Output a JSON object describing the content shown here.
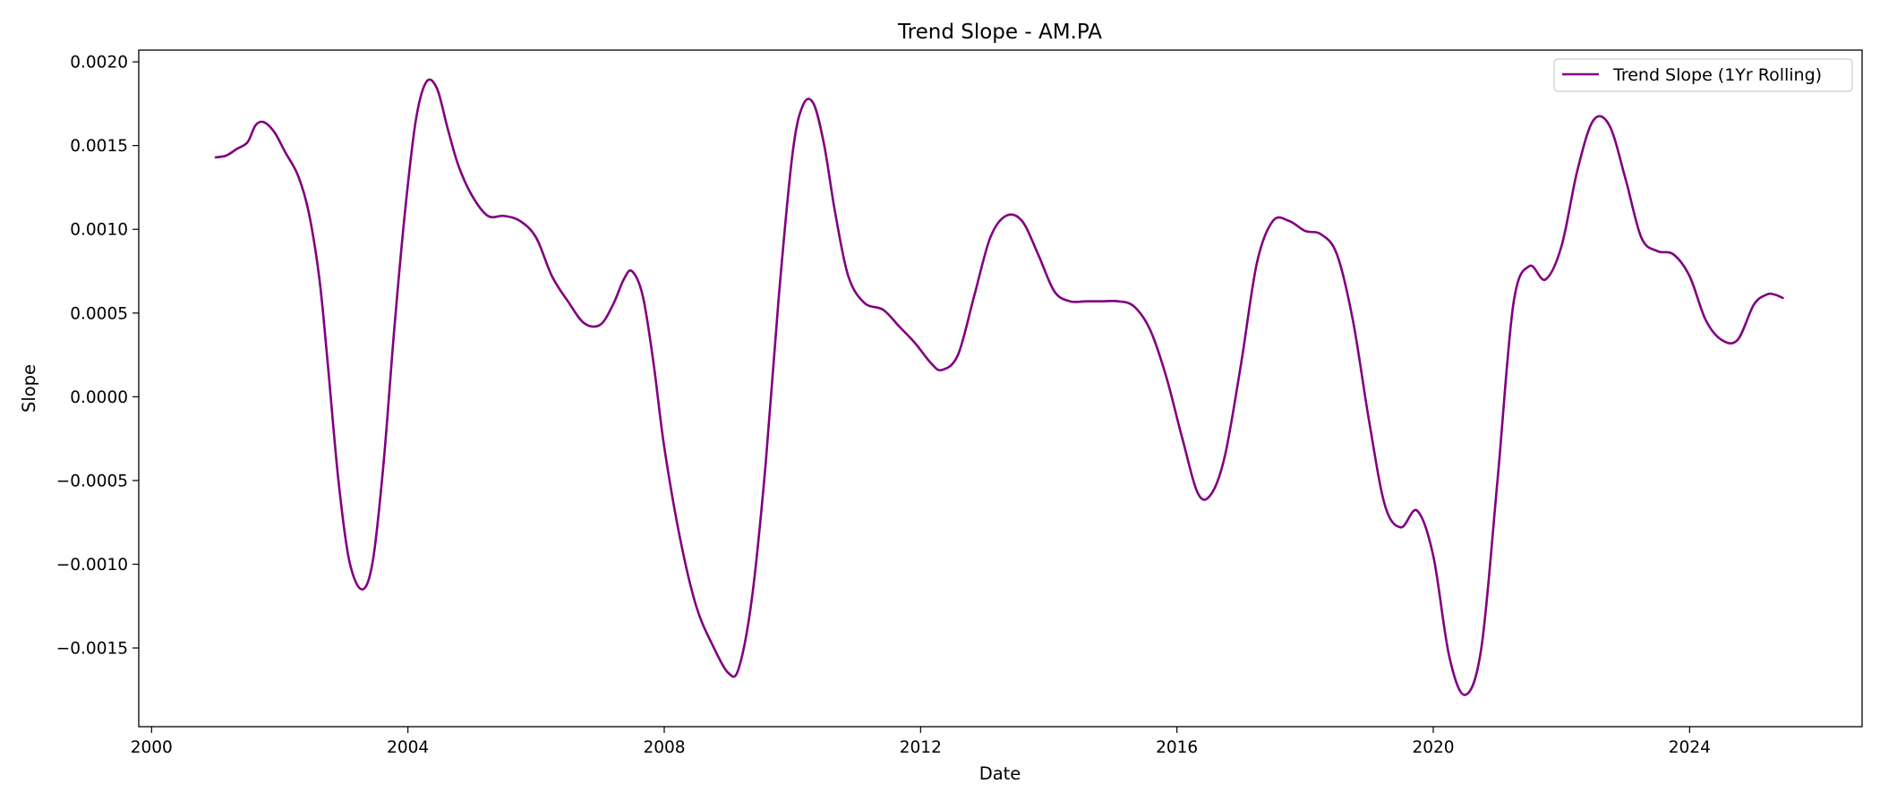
{
  "chart_data": {
    "type": "line",
    "title": "Trend Slope - AM.PA",
    "xlabel": "Date",
    "ylabel": "Slope",
    "xlim": [
      "1999-10-20",
      "2026-09-10"
    ],
    "ylim": [
      -0.00197,
      0.00207
    ],
    "x_ticks": [
      {
        "value": "2000-01-01",
        "label": "2000"
      },
      {
        "value": "2004-01-01",
        "label": "2004"
      },
      {
        "value": "2008-01-01",
        "label": "2008"
      },
      {
        "value": "2012-01-01",
        "label": "2012"
      },
      {
        "value": "2016-01-01",
        "label": "2016"
      },
      {
        "value": "2020-01-01",
        "label": "2020"
      },
      {
        "value": "2024-01-01",
        "label": "2024"
      }
    ],
    "y_ticks": [
      {
        "value": 0.002,
        "label": "0.0020"
      },
      {
        "value": 0.0015,
        "label": "0.0015"
      },
      {
        "value": 0.001,
        "label": "0.0010"
      },
      {
        "value": 0.0005,
        "label": "0.0005"
      },
      {
        "value": 0.0,
        "label": "0.0000"
      },
      {
        "value": -0.0005,
        "label": "−0.0005"
      },
      {
        "value": -0.001,
        "label": "−0.0010"
      },
      {
        "value": -0.0015,
        "label": "−0.0015"
      }
    ],
    "grid": false,
    "legend_position": "top-right",
    "series": [
      {
        "name": "Trend Slope (1Yr Rolling)",
        "color": "#800080",
        "points": [
          [
            "2001-01-01",
            0.00143
          ],
          [
            "2001-03-01",
            0.00144
          ],
          [
            "2001-05-01",
            0.00148
          ],
          [
            "2001-07-01",
            0.00152
          ],
          [
            "2001-08-15",
            0.00162
          ],
          [
            "2001-10-01",
            0.00164
          ],
          [
            "2001-12-01",
            0.00158
          ],
          [
            "2002-02-01",
            0.00146
          ],
          [
            "2002-04-15",
            0.00132
          ],
          [
            "2002-06-15",
            0.0011
          ],
          [
            "2002-08-15",
            0.0007
          ],
          [
            "2002-10-01",
            0.0002
          ],
          [
            "2002-12-01",
            -0.0005
          ],
          [
            "2003-02-01",
            -0.00098
          ],
          [
            "2003-04-15",
            -0.00115
          ],
          [
            "2003-06-15",
            -0.00098
          ],
          [
            "2003-08-15",
            -0.0004
          ],
          [
            "2003-10-15",
            0.0004
          ],
          [
            "2003-12-15",
            0.0011
          ],
          [
            "2004-02-15",
            0.00165
          ],
          [
            "2004-04-15",
            0.00188
          ],
          [
            "2004-06-15",
            0.00184
          ],
          [
            "2004-08-15",
            0.0016
          ],
          [
            "2004-10-15",
            0.00138
          ],
          [
            "2005-01-01",
            0.0012
          ],
          [
            "2005-04-01",
            0.00108
          ],
          [
            "2005-07-01",
            0.00108
          ],
          [
            "2005-10-01",
            0.00105
          ],
          [
            "2006-01-01",
            0.00095
          ],
          [
            "2006-04-01",
            0.00072
          ],
          [
            "2006-07-01",
            0.00057
          ],
          [
            "2006-10-01",
            0.00044
          ],
          [
            "2007-01-01",
            0.00043
          ],
          [
            "2007-03-15",
            0.00055
          ],
          [
            "2007-05-15",
            0.0007
          ],
          [
            "2007-07-01",
            0.00075
          ],
          [
            "2007-09-01",
            0.0006
          ],
          [
            "2007-11-01",
            0.0002
          ],
          [
            "2008-01-01",
            -0.0003
          ],
          [
            "2008-04-01",
            -0.00085
          ],
          [
            "2008-07-01",
            -0.00125
          ],
          [
            "2008-10-01",
            -0.00148
          ],
          [
            "2009-01-01",
            -0.00165
          ],
          [
            "2009-03-01",
            -0.00162
          ],
          [
            "2009-05-15",
            -0.0012
          ],
          [
            "2009-08-01",
            -0.0004
          ],
          [
            "2009-10-15",
            0.0006
          ],
          [
            "2010-01-01",
            0.00145
          ],
          [
            "2010-03-01",
            0.00174
          ],
          [
            "2010-05-01",
            0.00175
          ],
          [
            "2010-07-01",
            0.0015
          ],
          [
            "2010-09-01",
            0.0011
          ],
          [
            "2010-11-15",
            0.00072
          ],
          [
            "2011-02-15",
            0.00056
          ],
          [
            "2011-06-01",
            0.00052
          ],
          [
            "2011-09-01",
            0.00042
          ],
          [
            "2011-12-01",
            0.00032
          ],
          [
            "2012-03-01",
            0.0002
          ],
          [
            "2012-05-01",
            0.00016
          ],
          [
            "2012-08-01",
            0.00025
          ],
          [
            "2012-11-01",
            0.0006
          ],
          [
            "2013-02-01",
            0.00095
          ],
          [
            "2013-05-01",
            0.00108
          ],
          [
            "2013-08-01",
            0.00105
          ],
          [
            "2013-11-01",
            0.00085
          ],
          [
            "2014-02-01",
            0.00063
          ],
          [
            "2014-05-01",
            0.00057
          ],
          [
            "2014-08-01",
            0.00057
          ],
          [
            "2014-11-01",
            0.00057
          ],
          [
            "2015-02-01",
            0.00057
          ],
          [
            "2015-05-01",
            0.00054
          ],
          [
            "2015-08-01",
            0.0004
          ],
          [
            "2015-11-01",
            0.00012
          ],
          [
            "2016-02-01",
            -0.00025
          ],
          [
            "2016-05-01",
            -0.00058
          ],
          [
            "2016-07-15",
            -0.00058
          ],
          [
            "2016-10-01",
            -0.00035
          ],
          [
            "2017-01-01",
            0.0002
          ],
          [
            "2017-04-01",
            0.0008
          ],
          [
            "2017-07-01",
            0.00105
          ],
          [
            "2017-10-01",
            0.00105
          ],
          [
            "2018-01-01",
            0.00099
          ],
          [
            "2018-04-01",
            0.00097
          ],
          [
            "2018-07-01",
            0.00085
          ],
          [
            "2018-10-01",
            0.00045
          ],
          [
            "2019-01-01",
            -0.00015
          ],
          [
            "2019-04-01",
            -0.00065
          ],
          [
            "2019-07-01",
            -0.00078
          ],
          [
            "2019-10-01",
            -0.00068
          ],
          [
            "2020-01-01",
            -0.00095
          ],
          [
            "2020-04-01",
            -0.00155
          ],
          [
            "2020-07-01",
            -0.00178
          ],
          [
            "2020-10-01",
            -0.0015
          ],
          [
            "2021-01-01",
            -0.0005
          ],
          [
            "2021-04-01",
            0.00055
          ],
          [
            "2021-07-01",
            0.00078
          ],
          [
            "2021-10-01",
            0.0007
          ],
          [
            "2022-01-01",
            0.0009
          ],
          [
            "2022-04-01",
            0.00135
          ],
          [
            "2022-07-01",
            0.00165
          ],
          [
            "2022-10-01",
            0.00162
          ],
          [
            "2023-01-01",
            0.0013
          ],
          [
            "2023-04-01",
            0.00095
          ],
          [
            "2023-07-01",
            0.00087
          ],
          [
            "2023-10-01",
            0.00085
          ],
          [
            "2024-01-01",
            0.00072
          ],
          [
            "2024-04-01",
            0.00046
          ],
          [
            "2024-07-01",
            0.00034
          ],
          [
            "2024-10-01",
            0.00034
          ],
          [
            "2025-01-01",
            0.00055
          ],
          [
            "2025-03-15",
            0.00061
          ],
          [
            "2025-05-01",
            0.00061
          ],
          [
            "2025-06-15",
            0.00059
          ]
        ]
      }
    ]
  }
}
